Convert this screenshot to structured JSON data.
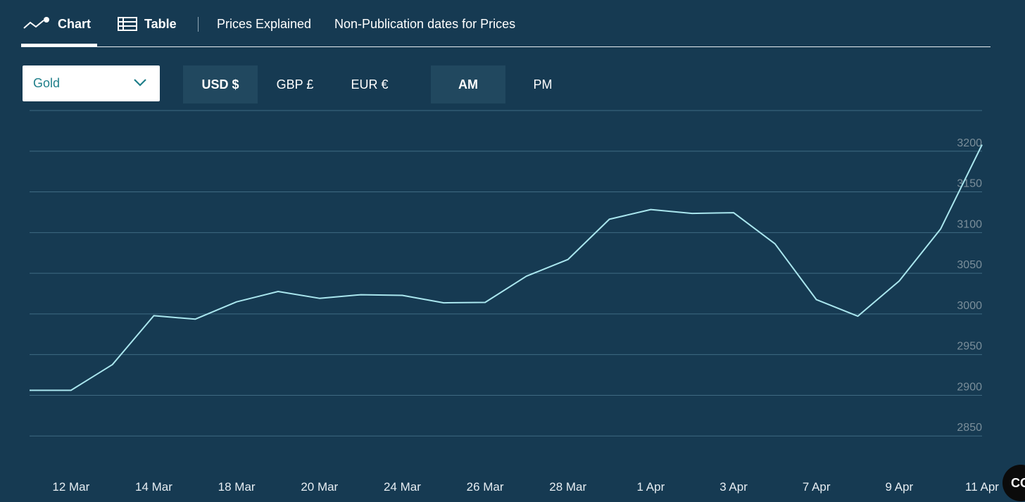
{
  "tabs": {
    "chart": "Chart",
    "table": "Table",
    "prices_explained": "Prices Explained",
    "non_publication": "Non-Publication dates for Prices"
  },
  "metal_select": {
    "value": "Gold"
  },
  "currencies": [
    {
      "label": "USD $",
      "active": true
    },
    {
      "label": "GBP £",
      "active": false
    },
    {
      "label": "EUR €",
      "active": false
    }
  ],
  "sessions": [
    {
      "label": "AM",
      "active": true
    },
    {
      "label": "PM",
      "active": false
    }
  ],
  "corner_badge": {
    "text": "CC"
  },
  "colors": {
    "background": "#163a52",
    "line": "#a9e6ee",
    "grid": "#3f6a82",
    "active_button": "#21485f",
    "select_text": "#1f7f8a"
  },
  "chart_data": {
    "type": "line",
    "title": "",
    "xlabel": "",
    "ylabel": "",
    "x_tick_labels": [
      "12 Mar",
      "14 Mar",
      "18 Mar",
      "20 Mar",
      "24 Mar",
      "26 Mar",
      "28 Mar",
      "1 Apr",
      "3 Apr",
      "7 Apr",
      "9 Apr",
      "11 Apr"
    ],
    "y_ticks": [
      2850,
      2900,
      2950,
      3000,
      3050,
      3100,
      3150,
      3200
    ],
    "ylim": [
      2800,
      3250
    ],
    "y_axis_side": "right",
    "grid": true,
    "series": [
      {
        "x": [
          "11 Mar",
          "12 Mar",
          "13 Mar",
          "14 Mar",
          "17 Mar",
          "18 Mar",
          "19 Mar",
          "20 Mar",
          "21 Mar",
          "24 Mar",
          "25 Mar",
          "26 Mar",
          "27 Mar",
          "28 Mar",
          "31 Mar",
          "1 Apr",
          "2 Apr",
          "3 Apr",
          "4 Apr",
          "7 Apr",
          "8 Apr",
          "9 Apr",
          "10 Apr",
          "11 Apr"
        ],
        "values": [
          2906.1,
          2906.1,
          2937.8,
          2997.8,
          2993.6,
          3014.9,
          3027.6,
          3019.2,
          3023.6,
          3022.8,
          3013.7,
          3014.2,
          3046.5,
          3066.9,
          3116.4,
          3128.3,
          3123.6,
          3124.4,
          3086.2,
          3017.6,
          2997.2,
          3040.5,
          3104.5,
          3208.0
        ]
      }
    ]
  }
}
